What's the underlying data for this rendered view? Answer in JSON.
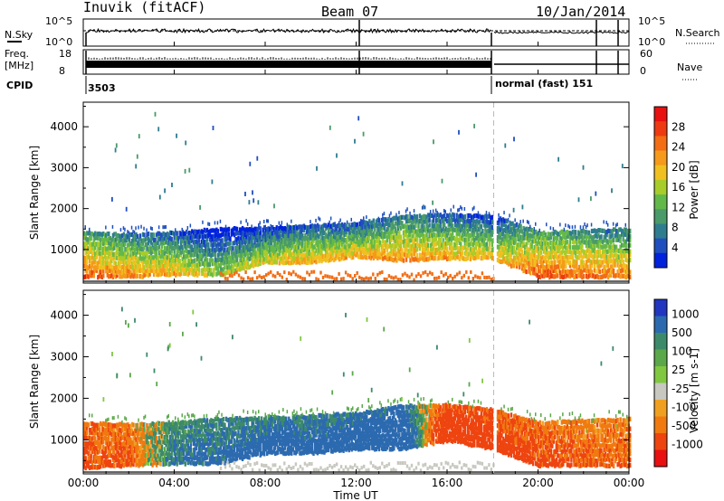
{
  "header": {
    "station": "Inuvik (fitACF)",
    "beam": "Beam 07",
    "date": "10/Jan/2014"
  },
  "top_panels": {
    "nsky_label": "N.Sky",
    "nsky_ticks": [
      "10^5",
      "10^0"
    ],
    "nsearch_label": "N.Search",
    "nsearch_ticks": [
      "10^5",
      "10^0"
    ],
    "freq_label_1": "Freq.",
    "freq_label_2": "[MHz]",
    "freq_ticks": [
      "18",
      "8"
    ],
    "nave_label": "Nave",
    "nave_ticks": [
      "60",
      "0"
    ],
    "cpid_label": "CPID",
    "cpid_left": "3503",
    "cpid_right": "normal (fast) 151"
  },
  "chart_data": [
    {
      "type": "heatmap",
      "name": "power",
      "ylabel": "Slant Range [km]",
      "yticks": [
        "4000",
        "3000",
        "2000",
        "1000"
      ],
      "ylim": [
        180,
        4600
      ],
      "xlim": [
        0,
        24
      ],
      "colorbar_label": "Power [dB]",
      "colorbar_ticks": [
        "28",
        "24",
        "20",
        "16",
        "12",
        "8",
        "4"
      ],
      "colorscale": [
        "#0022dd",
        "#1f4fbf",
        "#2e7d8f",
        "#4a9a6a",
        "#63b84a",
        "#a8cc2a",
        "#f0c020",
        "#f59a1a",
        "#f26d14",
        "#ee3a10",
        "#e81010"
      ],
      "band": [
        {
          "t": 0,
          "lo": 350,
          "hi": 1500,
          "pw": 26
        },
        {
          "t": 2,
          "lo": 350,
          "hi": 1450,
          "pw": 22
        },
        {
          "t": 4,
          "lo": 400,
          "hi": 1500,
          "pw": 20
        },
        {
          "t": 6,
          "lo": 400,
          "hi": 1600,
          "pw": 14
        },
        {
          "t": 8,
          "lo": 700,
          "hi": 1600,
          "pw": 18
        },
        {
          "t": 10,
          "lo": 700,
          "hi": 1650,
          "pw": 20
        },
        {
          "t": 12,
          "lo": 850,
          "hi": 1700,
          "pw": 20
        },
        {
          "t": 14,
          "lo": 750,
          "hi": 1900,
          "pw": 22
        },
        {
          "t": 16,
          "lo": 800,
          "hi": 1950,
          "pw": 20
        },
        {
          "t": 18,
          "lo": 800,
          "hi": 1900,
          "pw": 18
        },
        {
          "t": 20,
          "lo": 350,
          "hi": 1500,
          "pw": 26
        },
        {
          "t": 22,
          "lo": 350,
          "hi": 1550,
          "pw": 24
        },
        {
          "t": 24,
          "lo": 350,
          "hi": 1600,
          "pw": 22
        }
      ]
    },
    {
      "type": "heatmap",
      "name": "velocity",
      "ylabel": "Slant Range [km]",
      "yticks": [
        "4000",
        "3000",
        "2000",
        "1000"
      ],
      "ylim": [
        180,
        4600
      ],
      "xlim": [
        0,
        24
      ],
      "colorbar_label": "Velocity [m s-1]",
      "colorbar_ticks": [
        "1000",
        "500",
        "100",
        "25",
        "-25",
        "-100",
        "-500",
        "-1000"
      ],
      "colorscale": [
        "#2236c0",
        "#2c6ab0",
        "#3d8a6a",
        "#5aa84a",
        "#80c840",
        "#c8c8c0",
        "#f0a020",
        "#f07a10",
        "#ee4410",
        "#e81010"
      ],
      "band": [
        {
          "t": 0,
          "lo": 350,
          "hi": 1500,
          "v": -150
        },
        {
          "t": 2,
          "lo": 400,
          "hi": 1450,
          "v": -120
        },
        {
          "t": 4,
          "lo": 450,
          "hi": 1500,
          "v": 120
        },
        {
          "t": 6,
          "lo": 450,
          "hi": 1600,
          "v": 150
        },
        {
          "t": 8,
          "lo": 700,
          "hi": 1600,
          "v": 200
        },
        {
          "t": 10,
          "lo": 700,
          "hi": 1650,
          "v": 180
        },
        {
          "t": 12,
          "lo": 800,
          "hi": 1700,
          "v": 250
        },
        {
          "t": 14,
          "lo": 800,
          "hi": 1900,
          "v": 300
        },
        {
          "t": 16,
          "lo": 1000,
          "hi": 1900,
          "v": -300
        },
        {
          "t": 18,
          "lo": 800,
          "hi": 1800,
          "v": -200
        },
        {
          "t": 20,
          "lo": 400,
          "hi": 1500,
          "v": -150
        },
        {
          "t": 22,
          "lo": 400,
          "hi": 1550,
          "v": -100
        },
        {
          "t": 24,
          "lo": 400,
          "hi": 1600,
          "v": -120
        }
      ]
    }
  ],
  "xaxis": {
    "ticks": [
      "00:00",
      "04:00",
      "08:00",
      "12:00",
      "16:00",
      "20:00",
      "00:00"
    ],
    "label": "Time UT"
  }
}
